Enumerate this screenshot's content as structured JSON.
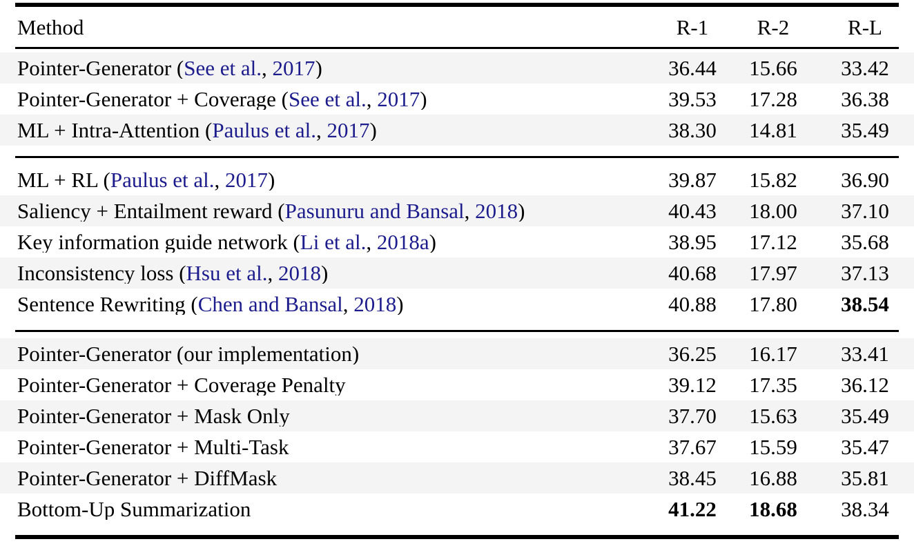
{
  "table": {
    "header": {
      "method": "Method",
      "r1": "R-1",
      "r2": "R-2",
      "rl": "R-L"
    },
    "colors": {
      "citation_link": "#1c1c8c",
      "row_alt_background": "#f4f4f4",
      "rule": "#000000",
      "text": "#000000",
      "page_background": "#ffffff"
    },
    "sections": [
      {
        "rows": [
          {
            "method_pre": "Pointer-Generator (",
            "cite_author": "See et al.",
            "cite_sep": ", ",
            "cite_year": "2017",
            "method_post": ")",
            "r1": "36.44",
            "r2": "15.66",
            "rl": "33.42",
            "bold": []
          },
          {
            "method_pre": "Pointer-Generator + Coverage (",
            "cite_author": "See et al.",
            "cite_sep": ", ",
            "cite_year": "2017",
            "method_post": ")",
            "r1": "39.53",
            "r2": "17.28",
            "rl": "36.38",
            "bold": []
          },
          {
            "method_pre": "ML + Intra-Attention (",
            "cite_author": "Paulus et al.",
            "cite_sep": ", ",
            "cite_year": "2017",
            "method_post": ")",
            "r1": "38.30",
            "r2": "14.81",
            "rl": "35.49",
            "bold": []
          }
        ]
      },
      {
        "rows": [
          {
            "method_pre": "ML + RL (",
            "cite_author": "Paulus et al.",
            "cite_sep": ", ",
            "cite_year": "2017",
            "method_post": ")",
            "r1": "39.87",
            "r2": "15.82",
            "rl": "36.90",
            "bold": []
          },
          {
            "method_pre": "Saliency + Entailment reward (",
            "cite_author": "Pasunuru and Bansal",
            "cite_sep": ", ",
            "cite_year": "2018",
            "method_post": ")",
            "r1": "40.43",
            "r2": "18.00",
            "rl": "37.10",
            "bold": []
          },
          {
            "method_pre": "Key information guide network (",
            "cite_author": "Li et al.",
            "cite_sep": ", ",
            "cite_year": "2018a",
            "method_post": ")",
            "r1": "38.95",
            "r2": "17.12",
            "rl": "35.68",
            "bold": []
          },
          {
            "method_pre": "Inconsistency loss (",
            "cite_author": "Hsu et al.",
            "cite_sep": ", ",
            "cite_year": "2018",
            "method_post": ")",
            "r1": "40.68",
            "r2": "17.97",
            "rl": "37.13",
            "bold": []
          },
          {
            "method_pre": "Sentence Rewriting (",
            "cite_author": "Chen and Bansal",
            "cite_sep": ", ",
            "cite_year": "2018",
            "method_post": ")",
            "r1": "40.88",
            "r2": "17.80",
            "rl": "38.54",
            "bold": [
              "rl"
            ]
          }
        ]
      },
      {
        "rows": [
          {
            "method_pre": "Pointer-Generator (our implementation)",
            "r1": "36.25",
            "r2": "16.17",
            "rl": "33.41",
            "bold": []
          },
          {
            "method_pre": "Pointer-Generator + Coverage Penalty",
            "r1": "39.12",
            "r2": "17.35",
            "rl": "36.12",
            "bold": []
          },
          {
            "method_pre": "Pointer-Generator + Mask Only",
            "r1": "37.70",
            "r2": "15.63",
            "rl": "35.49",
            "bold": []
          },
          {
            "method_pre": "Pointer-Generator + Multi-Task",
            "r1": "37.67",
            "r2": "15.59",
            "rl": "35.47",
            "bold": []
          },
          {
            "method_pre": "Pointer-Generator + DiffMask",
            "r1": "38.45",
            "r2": "16.88",
            "rl": "35.81",
            "bold": []
          },
          {
            "method_pre": "Bottom-Up Summarization",
            "r1": "41.22",
            "r2": "18.68",
            "rl": "38.34",
            "bold": [
              "r1",
              "r2"
            ]
          }
        ]
      }
    ]
  }
}
